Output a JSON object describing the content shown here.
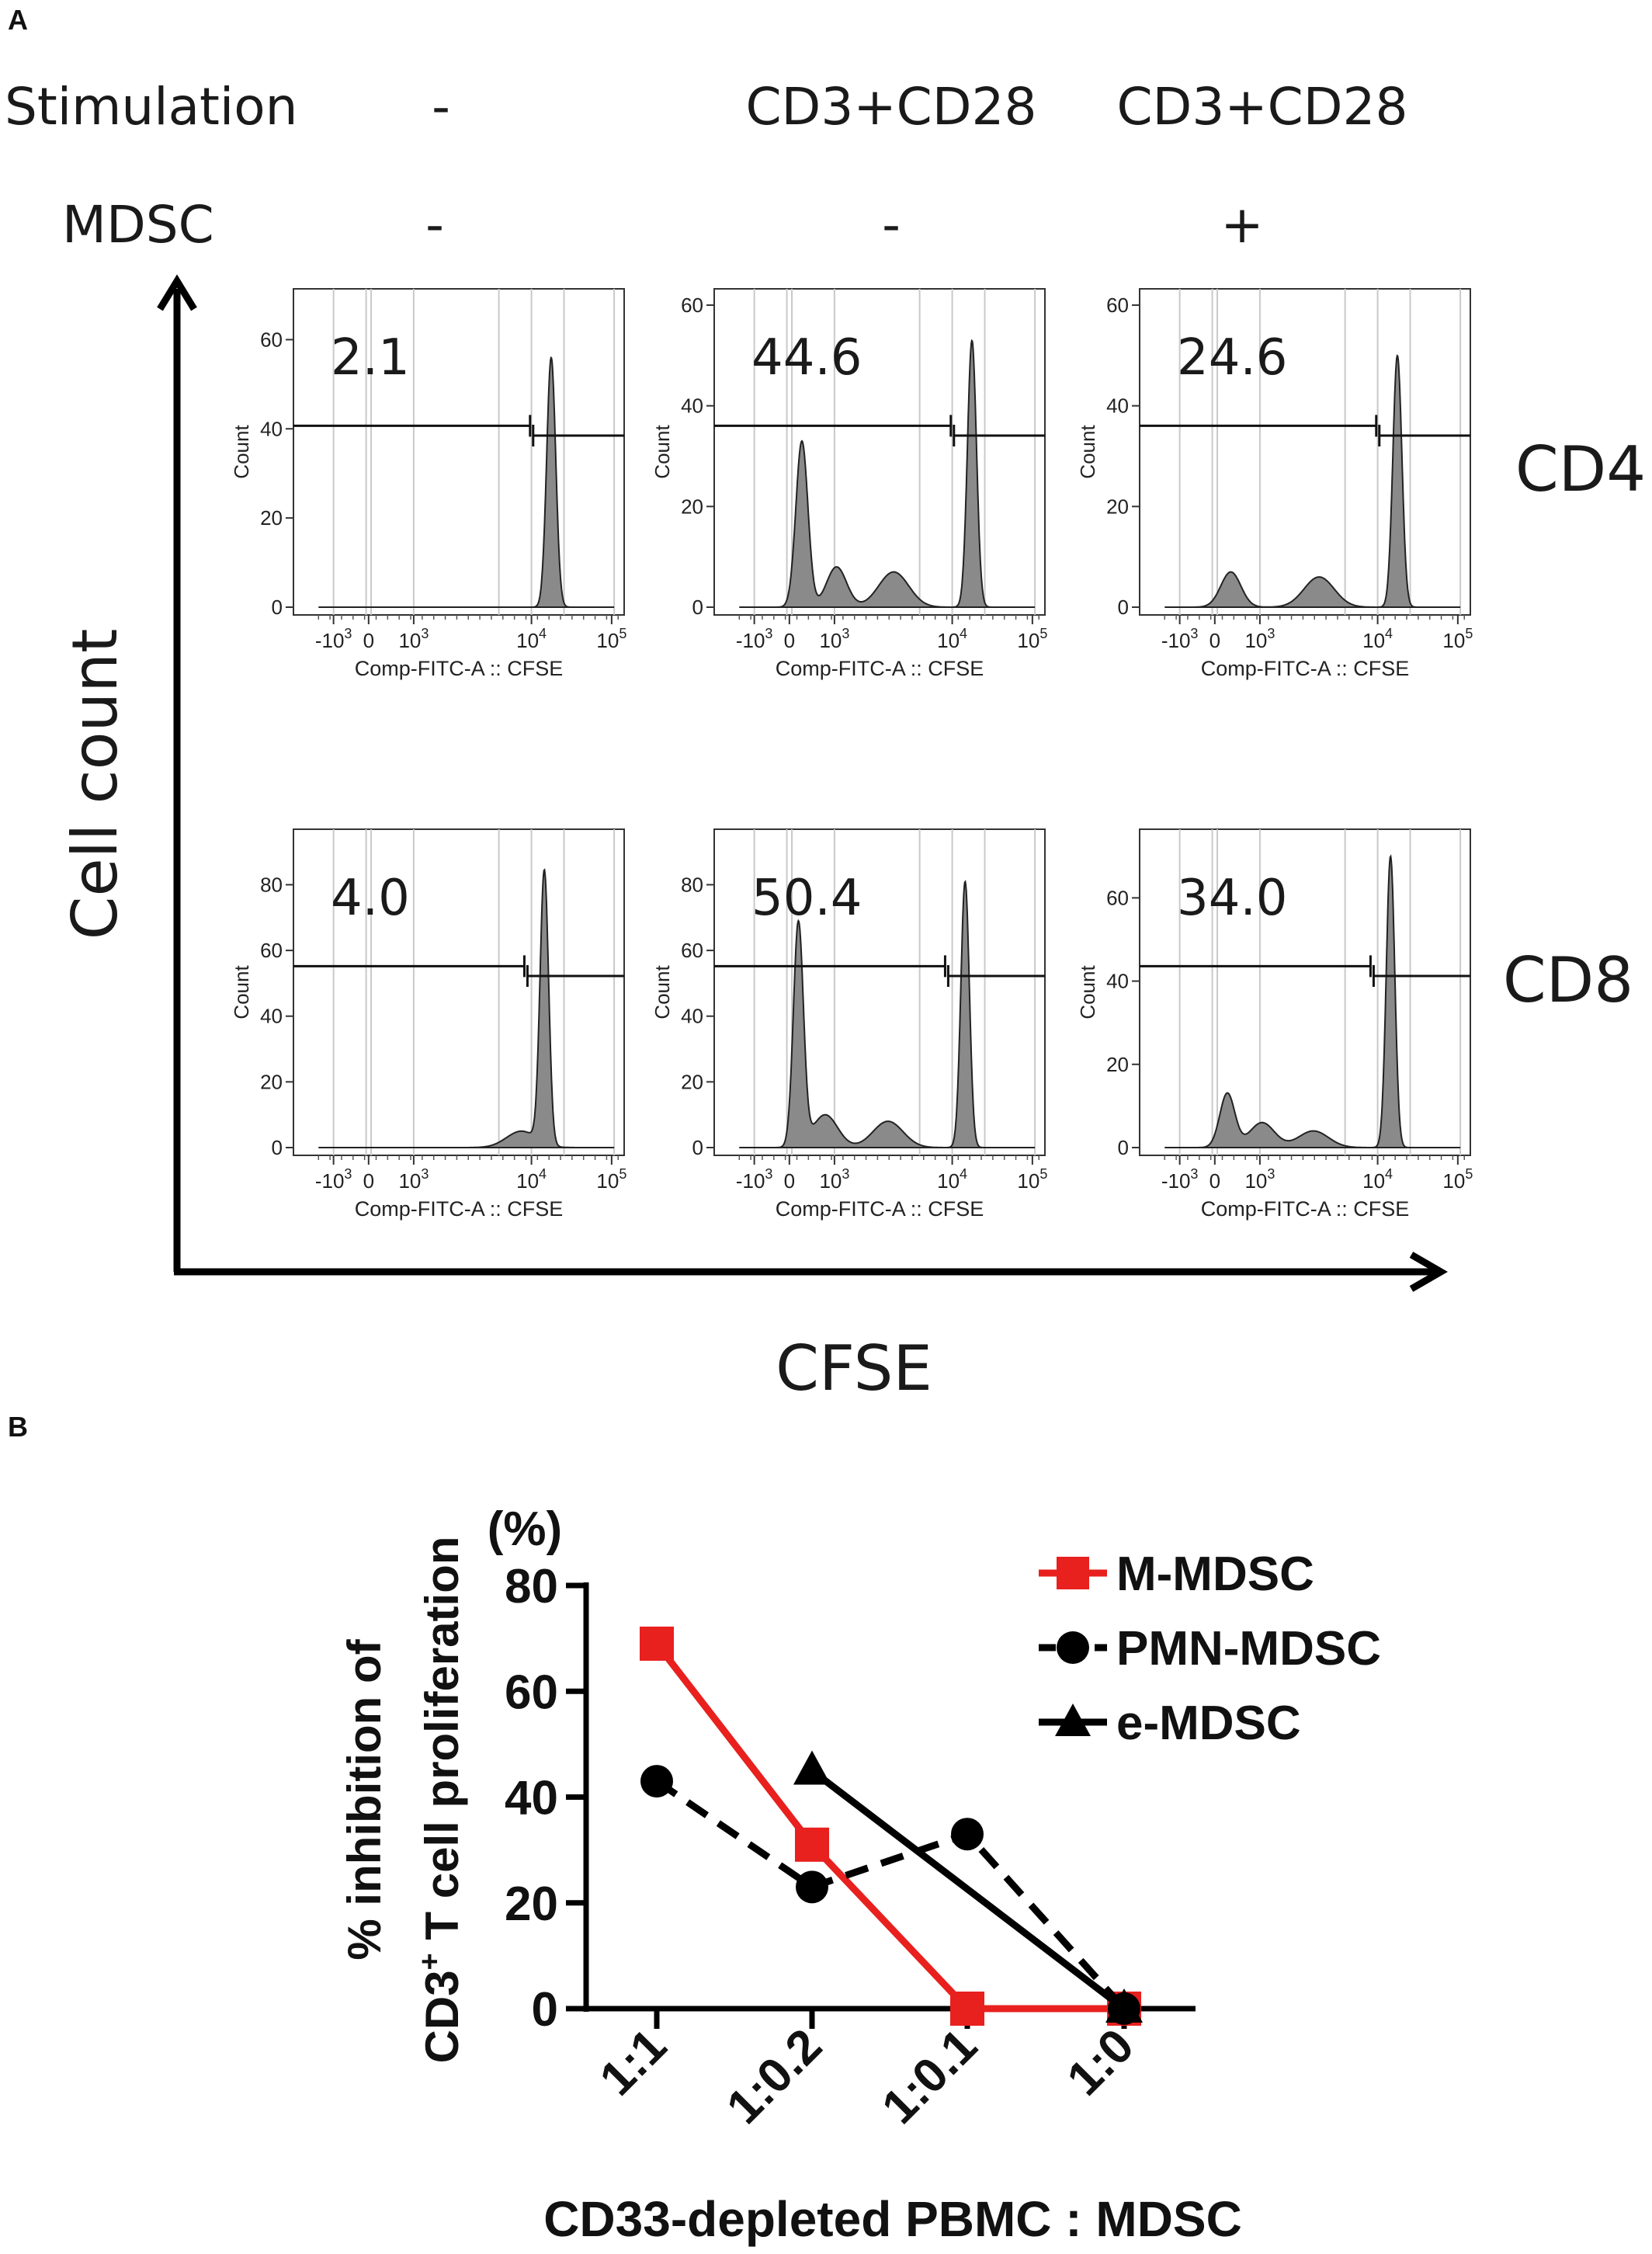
{
  "panel_a": {
    "label": "A",
    "stimulation": {
      "label": "Stimulation",
      "values": [
        "-",
        "CD3+CD28",
        "CD3+CD28"
      ]
    },
    "mdsc": {
      "label": "MDSC",
      "values": [
        "-",
        "-",
        "+"
      ]
    },
    "y_axis_label": "Cell count",
    "x_axis_label": "CFSE",
    "row_labels": [
      "CD4",
      "CD8"
    ]
  },
  "panel_b": {
    "label": "B"
  },
  "chart_data": [
    {
      "type": "histogram",
      "panel": "A",
      "x_tick_labels": [
        "-10^3",
        "0",
        "10^3",
        "10^4",
        "10^5"
      ],
      "xlabel": "Comp-FITC-A :: CFSE",
      "ylabel": "Count",
      "plots": [
        {
          "row": "CD4",
          "column": 1,
          "percent": "2.1",
          "ymax": 70,
          "yticks": [
            0,
            20,
            40,
            60
          ],
          "gate_log": 3.3,
          "peaks": [
            {
              "log": 3.67,
              "height": 56,
              "width": 0.09
            }
          ]
        },
        {
          "row": "CD4",
          "column": 2,
          "percent": "44.6",
          "ymax": 62,
          "yticks": [
            0,
            20,
            40,
            60
          ],
          "gate_log": 3.3,
          "peaks": [
            {
              "log": 3.67,
              "height": 53,
              "width": 0.09
            },
            {
              "log": 0.5,
              "height": 33,
              "width": 0.12
            },
            {
              "log": 1.3,
              "height": 8,
              "width": 0.2
            },
            {
              "log": 2.3,
              "height": 7,
              "width": 0.3
            }
          ]
        },
        {
          "row": "CD4",
          "column": 3,
          "percent": "24.6",
          "ymax": 62,
          "yticks": [
            0,
            20,
            40,
            60
          ],
          "gate_log": 3.3,
          "peaks": [
            {
              "log": 3.67,
              "height": 50,
              "width": 0.09
            },
            {
              "log": 0.6,
              "height": 7,
              "width": 0.2
            },
            {
              "log": 2.3,
              "height": 6,
              "width": 0.3
            }
          ]
        },
        {
          "row": "CD8",
          "column": 1,
          "percent": "4.0",
          "ymax": 95,
          "yticks": [
            0,
            20,
            40,
            60,
            80
          ],
          "gate_log": 3.2,
          "peaks": [
            {
              "log": 3.55,
              "height": 83,
              "width": 0.085
            },
            {
              "log": 3.15,
              "height": 5,
              "width": 0.3
            }
          ]
        },
        {
          "row": "CD8",
          "column": 2,
          "percent": "50.4",
          "ymax": 95,
          "yticks": [
            0,
            20,
            40,
            60,
            80
          ],
          "gate_log": 3.2,
          "peaks": [
            {
              "log": 3.55,
              "height": 81,
              "width": 0.085
            },
            {
              "log": 0.4,
              "height": 68,
              "width": 0.1
            },
            {
              "log": 1.1,
              "height": 10,
              "width": 0.25
            },
            {
              "log": 2.2,
              "height": 8,
              "width": 0.3
            }
          ]
        },
        {
          "row": "CD8",
          "column": 3,
          "percent": "34.0",
          "ymax": 75,
          "yticks": [
            0,
            20,
            40,
            60
          ],
          "gate_log": 3.2,
          "peaks": [
            {
              "log": 3.55,
              "height": 70,
              "width": 0.085
            },
            {
              "log": 0.5,
              "height": 13,
              "width": 0.15
            },
            {
              "log": 1.3,
              "height": 6,
              "width": 0.25
            },
            {
              "log": 2.2,
              "height": 4,
              "width": 0.3
            }
          ]
        }
      ]
    },
    {
      "type": "line",
      "panel": "B",
      "ylabel_line1": "% inhibition of",
      "ylabel_line2_pre": "CD3",
      "ylabel_line2_sup": "+",
      "ylabel_line2_post": " T cell proliferation",
      "yunit": "(%)",
      "xlabel": "CD33-depleted PBMC : MDSC",
      "categories": [
        "1:1",
        "1:0.2",
        "1:0.1",
        "1:0"
      ],
      "ylim": [
        0,
        80
      ],
      "yticks": [
        "0",
        "20",
        "40",
        "60",
        "80"
      ],
      "legend_position": "top-right",
      "series": [
        {
          "name": "M-MDSC",
          "color": "#e8201e",
          "marker": "square",
          "dash": "solid",
          "points": [
            [
              0,
              69
            ],
            [
              1,
              31
            ],
            [
              2,
              0
            ],
            [
              3,
              0
            ]
          ]
        },
        {
          "name": "PMN-MDSC",
          "color": "#000000",
          "marker": "circle",
          "dash": "dashed",
          "points": [
            [
              0,
              43
            ],
            [
              1,
              23
            ],
            [
              2,
              33
            ],
            [
              3,
              0
            ]
          ]
        },
        {
          "name": "e-MDSC",
          "color": "#000000",
          "marker": "triangle",
          "dash": "solid",
          "points": [
            [
              1,
              45
            ],
            [
              3,
              0
            ]
          ]
        }
      ]
    }
  ]
}
